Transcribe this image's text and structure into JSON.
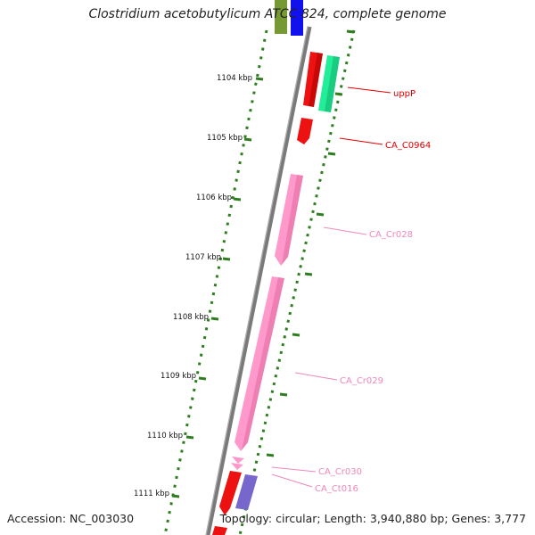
{
  "title": "Clostridium acetobutylicum ATCC 824, complete genome",
  "accession_text": "Accession: NC_003030",
  "topology_text": "Topology: circular; Length: 3,940,880 bp; Genes: 3,777",
  "colors": {
    "backbone": "#7a7a7a",
    "tick": "#2e7d1e",
    "gene_red": "#ee1111",
    "gene_green": "#22ee99",
    "gene_pink": "#ff99cc",
    "gene_purple": "#7766cc",
    "gene_blue": "#1111ee",
    "gene_olive": "#779933",
    "label_red": "#dd0000",
    "label_pink": "#ee88bb"
  },
  "kbp_labels": [
    {
      "text": "1104 kbp"
    },
    {
      "text": "1105 kbp"
    },
    {
      "text": "1106 kbp"
    },
    {
      "text": "1107 kbp"
    },
    {
      "text": "1108 kbp"
    },
    {
      "text": "1109 kbp"
    },
    {
      "text": "1110 kbp"
    },
    {
      "text": "1111 kbp"
    }
  ],
  "gene_labels": [
    {
      "name": "uppP"
    },
    {
      "name": "CA_C0964"
    },
    {
      "name": "CA_Cr028"
    },
    {
      "name": "CA_Cr029"
    },
    {
      "name": "CA_Cr030"
    },
    {
      "name": "CA_Ct016"
    }
  ]
}
